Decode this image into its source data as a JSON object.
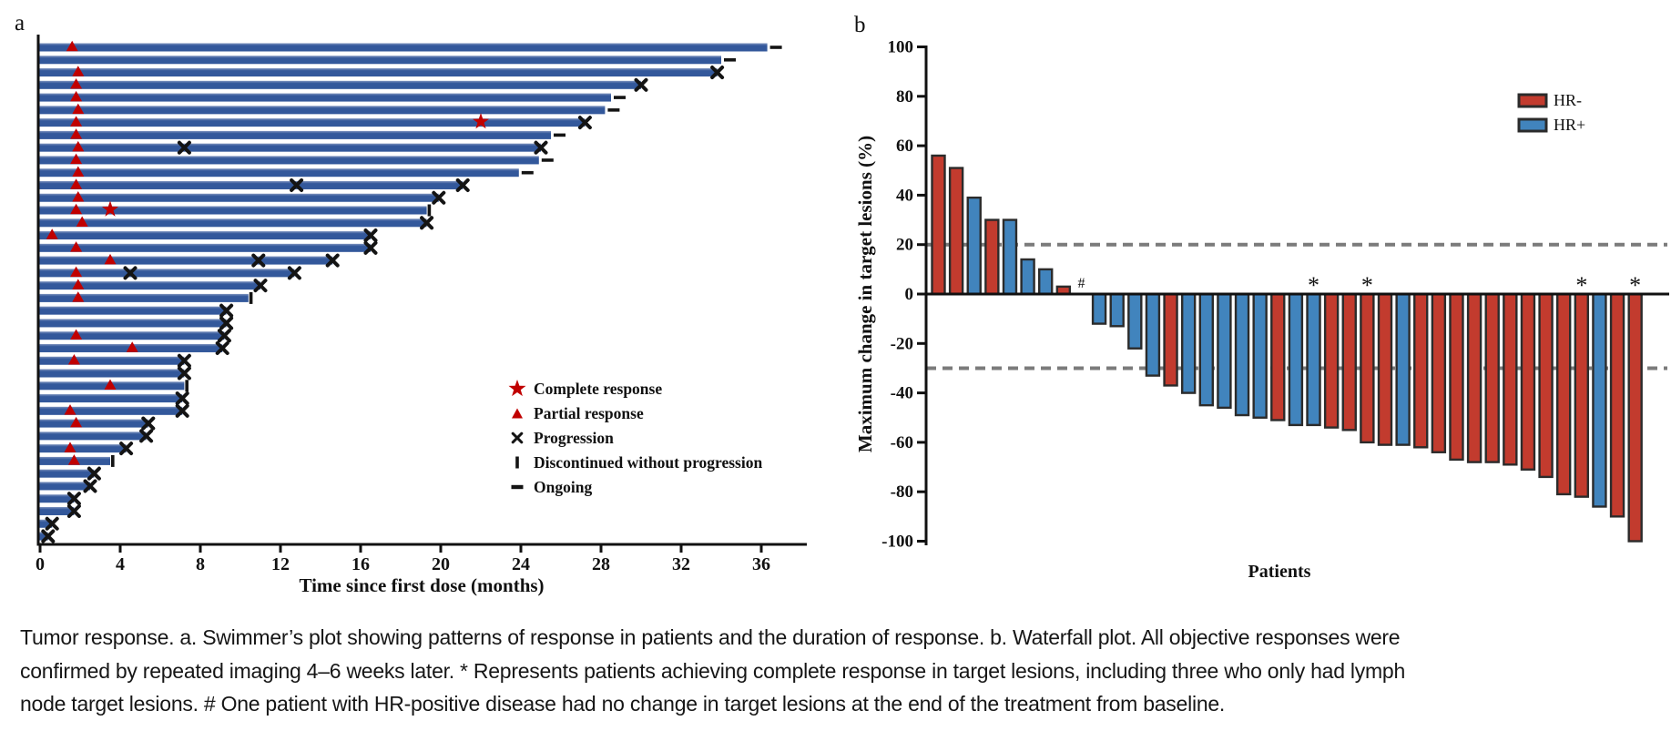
{
  "panels": {
    "a": {
      "label": "a"
    },
    "b": {
      "label": "b"
    }
  },
  "caption": "Tumor response. a. Swimmer’s plot showing patterns of response in patients and the duration of response. b. Waterfall plot. All objective responses were\nconfirmed by repeated imaging 4–6 weeks later. * Represents patients achieving complete response in target lesions, including three who only had lymph\nnode target lesions. # One patient with HR-positive disease had no change in target lesions at the end of the treatment from baseline.",
  "chart_data": [
    {
      "type": "swimmer",
      "xlabel": "Time since first dose (months)",
      "x_ticks": [
        0,
        4,
        8,
        12,
        16,
        20,
        24,
        28,
        32,
        36
      ],
      "xlim": [
        0,
        38
      ],
      "bar_color": "#33589B",
      "bar_color_top": "#7C92BE",
      "marker_red": "#C00000",
      "marker_black": "#141414",
      "legend": [
        {
          "marker": "star",
          "label": "Complete response"
        },
        {
          "marker": "triangle",
          "label": "Partial response"
        },
        {
          "marker": "xmark",
          "label": "Progression"
        },
        {
          "marker": "vbar",
          "label": "Discontinued without progression"
        },
        {
          "marker": "dash",
          "label": "Ongoing"
        }
      ],
      "patients": [
        {
          "t": 36.3,
          "end": "ongoing",
          "events": [
            [
              "pr",
              1.6
            ]
          ]
        },
        {
          "t": 34.0,
          "end": "ongoing",
          "events": []
        },
        {
          "t": 33.8,
          "end": "progression",
          "events": [
            [
              "pr",
              1.9
            ]
          ]
        },
        {
          "t": 30.0,
          "end": "progression",
          "events": [
            [
              "pr",
              1.8
            ]
          ]
        },
        {
          "t": 28.5,
          "end": "ongoing",
          "events": [
            [
              "pr",
              1.8
            ]
          ]
        },
        {
          "t": 28.2,
          "end": "ongoing",
          "events": [
            [
              "pr",
              1.9
            ]
          ]
        },
        {
          "t": 27.2,
          "end": "progression",
          "events": [
            [
              "pr",
              1.8
            ],
            [
              "cr",
              22.0
            ]
          ]
        },
        {
          "t": 25.5,
          "end": "ongoing",
          "events": [
            [
              "pr",
              1.8
            ]
          ]
        },
        {
          "t": 25.0,
          "end": "progression",
          "events": [
            [
              "pr",
              1.9
            ],
            [
              "x",
              7.2
            ]
          ]
        },
        {
          "t": 24.9,
          "end": "ongoing",
          "events": [
            [
              "pr",
              1.8
            ]
          ]
        },
        {
          "t": 23.9,
          "end": "ongoing",
          "events": [
            [
              "pr",
              1.9
            ]
          ]
        },
        {
          "t": 21.1,
          "end": "progression",
          "events": [
            [
              "pr",
              1.8
            ],
            [
              "x",
              12.8
            ]
          ]
        },
        {
          "t": 19.9,
          "end": "progression",
          "events": [
            [
              "pr",
              1.9
            ]
          ]
        },
        {
          "t": 19.3,
          "end": "discontinued",
          "events": [
            [
              "pr",
              1.8
            ],
            [
              "cr",
              3.5
            ]
          ]
        },
        {
          "t": 19.3,
          "end": "progression",
          "events": [
            [
              "pr",
              2.1
            ]
          ]
        },
        {
          "t": 16.5,
          "end": "progression",
          "events": [
            [
              "pr",
              0.6
            ]
          ]
        },
        {
          "t": 16.5,
          "end": "progression",
          "events": [
            [
              "pr",
              1.8
            ]
          ]
        },
        {
          "t": 14.6,
          "end": "progression",
          "events": [
            [
              "pr",
              3.5
            ],
            [
              "x",
              10.9
            ]
          ]
        },
        {
          "t": 12.7,
          "end": "progression",
          "events": [
            [
              "pr",
              1.8
            ],
            [
              "x",
              4.5
            ]
          ]
        },
        {
          "t": 11.0,
          "end": "progression",
          "events": [
            [
              "pr",
              1.9
            ]
          ]
        },
        {
          "t": 10.4,
          "end": "discontinued",
          "events": [
            [
              "pr",
              1.9
            ]
          ]
        },
        {
          "t": 9.3,
          "end": "progression",
          "events": []
        },
        {
          "t": 9.3,
          "end": "progression",
          "events": []
        },
        {
          "t": 9.2,
          "end": "progression",
          "events": [
            [
              "pr",
              1.8
            ]
          ]
        },
        {
          "t": 9.1,
          "end": "progression",
          "events": [
            [
              "pr",
              4.6
            ]
          ]
        },
        {
          "t": 7.2,
          "end": "progression",
          "events": [
            [
              "pr",
              1.7
            ]
          ]
        },
        {
          "t": 7.2,
          "end": "progression",
          "events": []
        },
        {
          "t": 7.2,
          "end": "discontinued",
          "events": [
            [
              "pr",
              3.5
            ]
          ]
        },
        {
          "t": 7.1,
          "end": "progression",
          "events": []
        },
        {
          "t": 7.1,
          "end": "progression",
          "events": [
            [
              "pr",
              1.5
            ]
          ]
        },
        {
          "t": 5.4,
          "end": "progression",
          "events": [
            [
              "pr",
              1.8
            ]
          ]
        },
        {
          "t": 5.3,
          "end": "progression",
          "events": []
        },
        {
          "t": 4.3,
          "end": "progression",
          "events": [
            [
              "pr",
              1.5
            ]
          ]
        },
        {
          "t": 3.5,
          "end": "discontinued",
          "events": [
            [
              "pr",
              1.7
            ]
          ]
        },
        {
          "t": 2.7,
          "end": "progression",
          "events": []
        },
        {
          "t": 2.5,
          "end": "progression",
          "events": []
        },
        {
          "t": 1.7,
          "end": "progression",
          "events": []
        },
        {
          "t": 1.7,
          "end": "progression",
          "events": []
        },
        {
          "t": 0.6,
          "end": "progression",
          "events": []
        },
        {
          "t": 0.4,
          "end": "progression",
          "events": []
        }
      ]
    },
    {
      "type": "waterfall",
      "ylabel": "Maximum change in target lesions (%)",
      "xlabel": "Patients",
      "ylim": [
        -100,
        100
      ],
      "y_ticks": [
        100,
        80,
        60,
        40,
        20,
        0,
        -20,
        -40,
        -60,
        -80,
        -100
      ],
      "reference_lines": [
        20,
        -30
      ],
      "reference_color": "#7B7B7B",
      "colors": {
        "HR-": "#C23B2E",
        "HR+": "#4184BD"
      },
      "bar_stroke": "#2B2B2B",
      "legend": [
        {
          "label": "HR-",
          "group": "HR-"
        },
        {
          "label": "HR+",
          "group": "HR+"
        }
      ],
      "bars": [
        {
          "v": 56,
          "g": "HR-"
        },
        {
          "v": 51,
          "g": "HR-"
        },
        {
          "v": 39,
          "g": "HR+"
        },
        {
          "v": 30,
          "g": "HR-"
        },
        {
          "v": 30,
          "g": "HR+"
        },
        {
          "v": 14,
          "g": "HR+"
        },
        {
          "v": 10,
          "g": "HR+"
        },
        {
          "v": 3,
          "g": "HR-"
        },
        {
          "v": 0,
          "g": "HR+",
          "m": "#"
        },
        {
          "v": -12,
          "g": "HR+"
        },
        {
          "v": -13,
          "g": "HR+"
        },
        {
          "v": -22,
          "g": "HR+"
        },
        {
          "v": -33,
          "g": "HR+"
        },
        {
          "v": -37,
          "g": "HR-"
        },
        {
          "v": -40,
          "g": "HR+"
        },
        {
          "v": -45,
          "g": "HR+"
        },
        {
          "v": -46,
          "g": "HR+"
        },
        {
          "v": -49,
          "g": "HR+"
        },
        {
          "v": -50,
          "g": "HR+"
        },
        {
          "v": -51,
          "g": "HR-"
        },
        {
          "v": -53,
          "g": "HR+"
        },
        {
          "v": -53,
          "g": "HR+",
          "m": "*"
        },
        {
          "v": -54,
          "g": "HR-"
        },
        {
          "v": -55,
          "g": "HR-"
        },
        {
          "v": -60,
          "g": "HR-",
          "m": "*"
        },
        {
          "v": -61,
          "g": "HR-"
        },
        {
          "v": -61,
          "g": "HR+"
        },
        {
          "v": -62,
          "g": "HR-"
        },
        {
          "v": -64,
          "g": "HR-"
        },
        {
          "v": -67,
          "g": "HR-"
        },
        {
          "v": -68,
          "g": "HR-"
        },
        {
          "v": -68,
          "g": "HR-"
        },
        {
          "v": -69,
          "g": "HR-"
        },
        {
          "v": -71,
          "g": "HR-"
        },
        {
          "v": -74,
          "g": "HR-"
        },
        {
          "v": -81,
          "g": "HR-"
        },
        {
          "v": -82,
          "g": "HR-",
          "m": "*"
        },
        {
          "v": -86,
          "g": "HR+"
        },
        {
          "v": -90,
          "g": "HR-"
        },
        {
          "v": -100,
          "g": "HR-",
          "m": "*"
        }
      ]
    }
  ]
}
